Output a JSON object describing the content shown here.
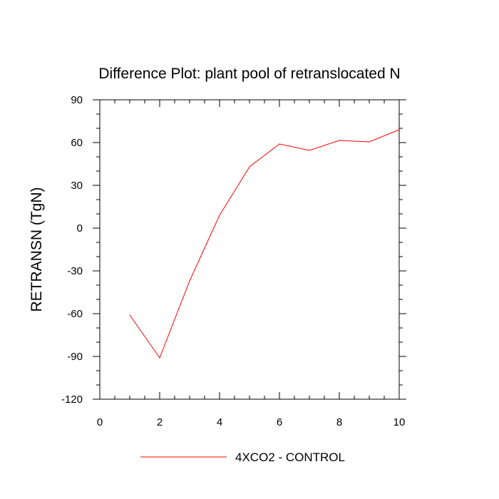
{
  "chart_data": {
    "type": "line",
    "title": "Difference Plot: plant pool of retranslocated N",
    "xlabel": "",
    "ylabel": "RETRANSN  (TgN)",
    "xlim": [
      0,
      10
    ],
    "ylim": [
      -120,
      90
    ],
    "x_ticks": [
      0,
      2,
      4,
      6,
      8,
      10
    ],
    "y_ticks": [
      -120,
      -90,
      -60,
      -30,
      0,
      30,
      60,
      90
    ],
    "x_tick_labels": [
      "0",
      "2",
      "4",
      "6",
      "8",
      "10"
    ],
    "y_tick_labels": [
      "-120",
      "-90",
      "-60",
      "-30",
      "0",
      "30",
      "60",
      "90"
    ],
    "legend_position": "bottom-center",
    "grid": false,
    "series": [
      {
        "name": "4XCO2 - CONTROL",
        "color": "#ff0000",
        "x": [
          1,
          2,
          3,
          4,
          5,
          6,
          7,
          8,
          9,
          10
        ],
        "values": [
          -61,
          -91,
          -37,
          9,
          43,
          59,
          54.5,
          61.5,
          60.5,
          69
        ]
      }
    ]
  }
}
